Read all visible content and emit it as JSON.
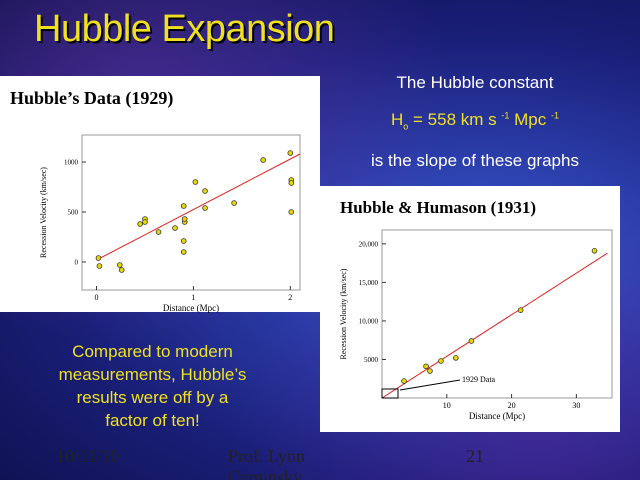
{
  "title": "Hubble Expansion",
  "text": [
    "The Hubble constant",
    "is the slope of these graphs"
  ],
  "formula": {
    "symbol": "H",
    "subscript": "o",
    "text": "= 558 km s",
    "exp1": "-1",
    "unit": "Mpc",
    "exp2": "-1"
  },
  "note": [
    "Compared to modern",
    "measurements, Hubble’s",
    "results were off by a",
    "factor of ten!"
  ],
  "footer": {
    "date": "10/11/10",
    "author": "Prof. Lynn Cominsky",
    "page": "21"
  },
  "chart_data": [
    {
      "type": "scatter",
      "title": "Hubble’s Data (1929)",
      "x_label": "Distance (Mpc)",
      "y_label": "Recession Velocity (km/sec)",
      "xlim": [
        -0.15,
        2.1
      ],
      "ylim": [
        -280,
        1270
      ],
      "xticks": [
        0,
        1,
        2
      ],
      "yticks": [
        0,
        500,
        1000
      ],
      "x": [
        0.02,
        0.03,
        0.24,
        0.26,
        0.45,
        0.5,
        0.5,
        0.64,
        0.81,
        0.91,
        0.9,
        0.9,
        0.9,
        0.91,
        1.02,
        1.12,
        1.12,
        1.42,
        1.72,
        2.0,
        2.01,
        2.01,
        2.01
      ],
      "values": [
        40,
        -40,
        -30,
        -80,
        380,
        430,
        400,
        300,
        340,
        400,
        560,
        210,
        100,
        430,
        800,
        710,
        540,
        590,
        1020,
        1090,
        820,
        790,
        500
      ],
      "color": "#e8d800",
      "fit": {
        "x": [
          0,
          2.1
        ],
        "values": [
          20,
          1080
        ],
        "color": "#e02020"
      }
    },
    {
      "type": "scatter",
      "title": "Hubble & Humason (1931)",
      "x_label": "Distance (Mpc)",
      "y_label": "Recession Velocity (km/sec)",
      "xlim": [
        0,
        35.5
      ],
      "ylim": [
        0,
        21800
      ],
      "xticks": [
        10,
        20,
        30
      ],
      "yticks": [
        {
          "value": 5000,
          "label": "5000"
        },
        {
          "value": 10000,
          "label": "10,000"
        },
        {
          "value": 15000,
          "label": "15,000"
        },
        {
          "value": 20000,
          "label": "20,000"
        }
      ],
      "x": [
        3.4,
        6.8,
        7.4,
        9.1,
        11.4,
        13.8,
        21.4,
        32.8
      ],
      "values": [
        2200,
        4100,
        3500,
        4800,
        5200,
        7400,
        11400,
        19100
      ],
      "color": "#e8d800",
      "fit": {
        "x": [
          0,
          34.8
        ],
        "values": [
          0,
          18800
        ],
        "color": "#e02020"
      },
      "annotation": "1929 Data"
    }
  ]
}
